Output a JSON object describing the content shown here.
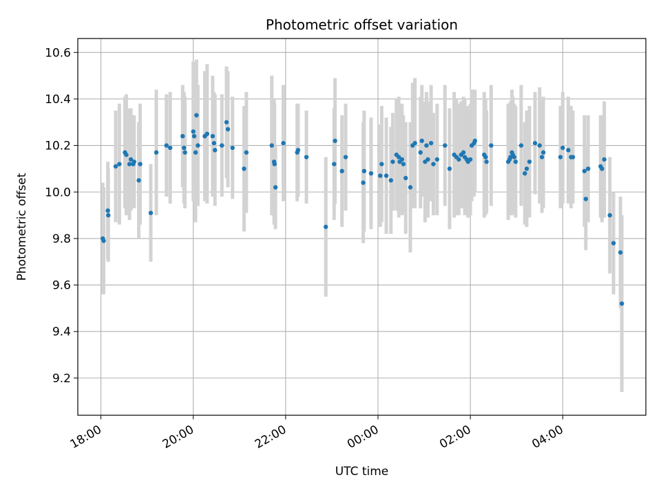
{
  "chart_data": {
    "type": "scatter",
    "title": "Photometric offset variation",
    "xlabel": "UTC time",
    "ylabel": "Photometric offset",
    "grid": true,
    "x_unit": "hours since 18:00",
    "xlim": [
      -0.5,
      11.8
    ],
    "ylim": [
      9.04,
      10.66
    ],
    "xticks": [
      {
        "value": 0,
        "label": "18:00"
      },
      {
        "value": 2,
        "label": "20:00"
      },
      {
        "value": 4,
        "label": "22:00"
      },
      {
        "value": 6,
        "label": "00:00"
      },
      {
        "value": 8,
        "label": "02:00"
      },
      {
        "value": 10,
        "label": "04:00"
      }
    ],
    "yticks": [
      {
        "value": 9.2,
        "label": "9.2"
      },
      {
        "value": 9.4,
        "label": "9.4"
      },
      {
        "value": 9.6,
        "label": "9.6"
      },
      {
        "value": 9.8,
        "label": "9.8"
      },
      {
        "value": 10.0,
        "label": "10.0"
      },
      {
        "value": 10.2,
        "label": "10.2"
      },
      {
        "value": 10.4,
        "label": "10.4"
      },
      {
        "value": 10.6,
        "label": "10.6"
      }
    ],
    "series": [
      {
        "name": "Photometric offset",
        "marker_color": "#1f77b4",
        "errorbar_color": "#d3d3d3",
        "x": [
          0.04,
          0.06,
          0.15,
          0.16,
          0.32,
          0.4,
          0.52,
          0.55,
          0.62,
          0.65,
          0.7,
          0.72,
          0.82,
          0.85,
          1.08,
          1.2,
          1.42,
          1.5,
          1.77,
          1.8,
          1.82,
          2.0,
          2.02,
          2.05,
          2.07,
          2.1,
          2.25,
          2.3,
          2.42,
          2.45,
          2.47,
          2.62,
          2.72,
          2.75,
          2.85,
          3.1,
          3.15,
          3.7,
          3.75,
          3.76,
          3.78,
          3.95,
          4.25,
          4.27,
          4.45,
          4.87,
          5.05,
          5.07,
          5.22,
          5.3,
          5.68,
          5.7,
          5.85,
          6.05,
          6.08,
          6.18,
          6.28,
          6.32,
          6.4,
          6.45,
          6.47,
          6.52,
          6.55,
          6.6,
          6.7,
          6.75,
          6.8,
          6.92,
          6.95,
          7.02,
          7.05,
          7.08,
          7.15,
          7.2,
          7.28,
          7.45,
          7.55,
          7.65,
          7.7,
          7.75,
          7.8,
          7.85,
          7.88,
          7.92,
          7.95,
          8.0,
          8.03,
          8.08,
          8.1,
          8.3,
          8.33,
          8.35,
          8.45,
          8.82,
          8.85,
          8.87,
          8.9,
          8.92,
          8.95,
          8.98,
          9.1,
          9.18,
          9.22,
          9.28,
          9.4,
          9.5,
          9.55,
          9.58,
          9.95,
          10.0,
          10.12,
          10.18,
          10.22,
          10.47,
          10.5,
          10.55,
          10.82,
          10.85,
          10.9,
          11.02,
          11.1,
          11.25,
          11.28
        ],
        "y": [
          9.8,
          9.79,
          9.92,
          9.9,
          10.11,
          10.12,
          10.17,
          10.16,
          10.12,
          10.14,
          10.12,
          10.13,
          10.05,
          10.12,
          9.91,
          10.17,
          10.2,
          10.19,
          10.24,
          10.19,
          10.17,
          10.26,
          10.24,
          10.17,
          10.33,
          10.2,
          10.24,
          10.25,
          10.24,
          10.21,
          10.18,
          10.2,
          10.3,
          10.27,
          10.19,
          10.1,
          10.17,
          10.2,
          10.13,
          10.12,
          10.02,
          10.21,
          10.17,
          10.18,
          10.15,
          9.85,
          10.12,
          10.22,
          10.09,
          10.15,
          10.04,
          10.09,
          10.08,
          10.07,
          10.12,
          10.07,
          10.05,
          10.13,
          10.16,
          10.15,
          10.13,
          10.14,
          10.12,
          10.06,
          10.02,
          10.2,
          10.21,
          10.17,
          10.22,
          10.13,
          10.2,
          10.14,
          10.21,
          10.12,
          10.14,
          10.2,
          10.1,
          10.16,
          10.15,
          10.14,
          10.16,
          10.17,
          10.15,
          10.14,
          10.13,
          10.14,
          10.2,
          10.21,
          10.22,
          10.16,
          10.15,
          10.13,
          10.2,
          10.13,
          10.14,
          10.15,
          10.17,
          10.16,
          10.15,
          10.13,
          10.2,
          10.08,
          10.1,
          10.13,
          10.21,
          10.2,
          10.15,
          10.17,
          10.15,
          10.19,
          10.18,
          10.15,
          10.15,
          10.09,
          9.97,
          10.1,
          10.11,
          10.1,
          10.14,
          9.9,
          9.78,
          9.74,
          9.52
        ],
        "err": [
          0.24,
          0.23,
          0.21,
          0.2,
          0.24,
          0.26,
          0.24,
          0.26,
          0.24,
          0.22,
          0.18,
          0.2,
          0.25,
          0.26,
          0.21,
          0.27,
          0.22,
          0.24,
          0.22,
          0.24,
          0.24,
          0.3,
          0.28,
          0.3,
          0.24,
          0.26,
          0.28,
          0.3,
          0.26,
          0.22,
          0.24,
          0.22,
          0.24,
          0.25,
          0.22,
          0.27,
          0.26,
          0.3,
          0.27,
          0.26,
          0.18,
          0.25,
          0.21,
          0.2,
          0.2,
          0.3,
          0.24,
          0.27,
          0.24,
          0.23,
          0.26,
          0.26,
          0.24,
          0.22,
          0.25,
          0.25,
          0.23,
          0.21,
          0.24,
          0.26,
          0.21,
          0.24,
          0.21,
          0.24,
          0.28,
          0.27,
          0.28,
          0.24,
          0.24,
          0.26,
          0.23,
          0.25,
          0.25,
          0.22,
          0.24,
          0.26,
          0.26,
          0.27,
          0.25,
          0.24,
          0.23,
          0.24,
          0.25,
          0.23,
          0.24,
          0.24,
          0.24,
          0.23,
          0.22,
          0.27,
          0.25,
          0.22,
          0.26,
          0.25,
          0.24,
          0.24,
          0.27,
          0.25,
          0.23,
          0.24,
          0.26,
          0.22,
          0.25,
          0.24,
          0.22,
          0.25,
          0.24,
          0.24,
          0.22,
          0.24,
          0.23,
          0.22,
          0.2,
          0.24,
          0.22,
          0.23,
          0.22,
          0.23,
          0.25,
          0.25,
          0.22,
          0.24,
          0.38
        ]
      }
    ]
  }
}
